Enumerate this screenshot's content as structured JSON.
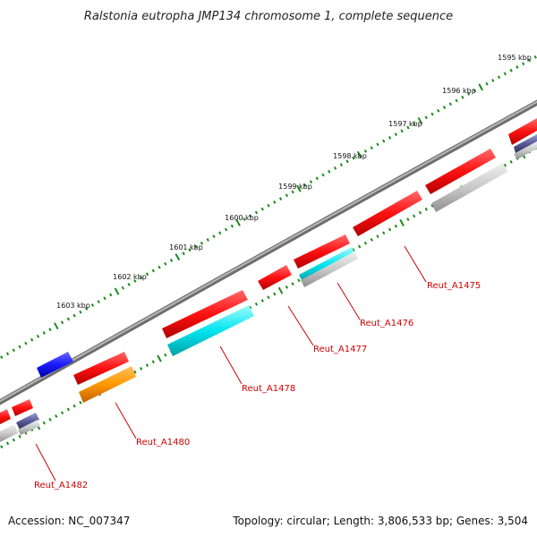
{
  "title": "Ralstonia eutropha JMP134 chromosome 1, complete sequence",
  "footer": {
    "accession": "Accession: NC_007347",
    "info": "Topology: circular; Length: 3,806,533 bp; Genes: 3,504"
  },
  "ticks": [
    "1595 kbp",
    "1596 kbp",
    "1597 kbp",
    "1598 kbp",
    "1599 kbp",
    "1600 kbp",
    "1601 kbp",
    "1602 kbp",
    "1603 kbp"
  ],
  "genes": [
    "Reut_A1475",
    "Reut_A1476",
    "Reut_A1477",
    "Reut_A1478",
    "Reut_A1480",
    "Reut_A1482"
  ],
  "colors": {
    "backbone": "#8a8a8a",
    "cds": "#ff1a1a",
    "cyan": "#00e5ee",
    "orange": "#ff9900",
    "gray": "#c8c8c8",
    "purple": "#5a5a9a",
    "blue": "#1a1aff",
    "tick": "#1a8a1a",
    "label": "#cc0000"
  }
}
